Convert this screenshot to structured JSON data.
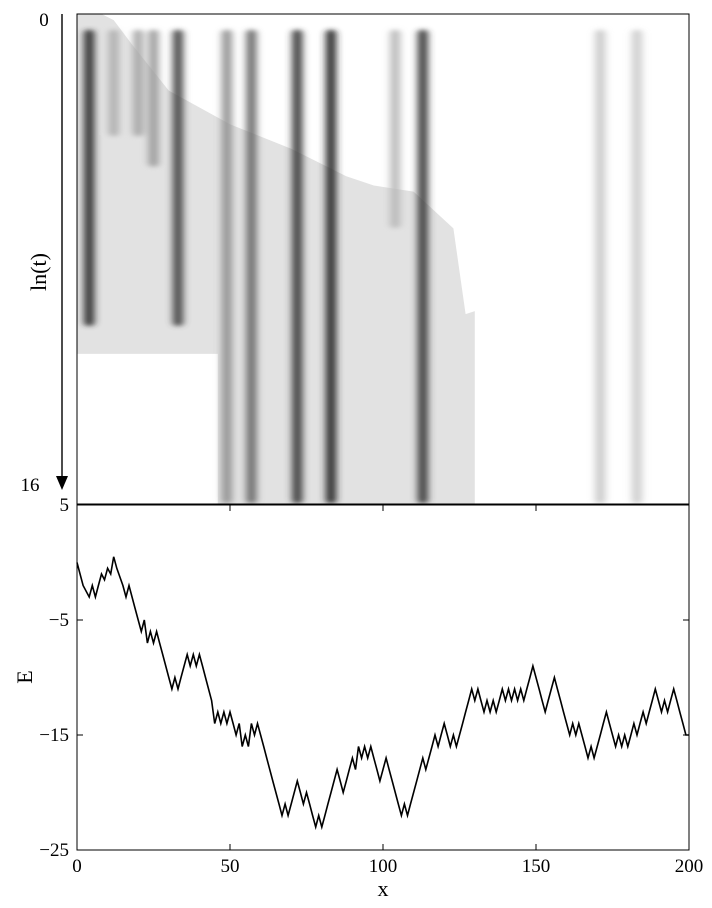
{
  "chart_data": [
    {
      "type": "heatmap",
      "title": "",
      "xlabel": "",
      "ylabel": "ln(t)",
      "xlim": [
        0,
        200
      ],
      "ylim": [
        0,
        16
      ],
      "y_tick_labels": [
        "0",
        "16"
      ],
      "y_axis_direction": "downward",
      "colormap": "grayscale (darker = higher density)",
      "grid": false,
      "columns": [
        {
          "x": 4,
          "end_ln_t": 10.2,
          "peak": 0.92
        },
        {
          "x": 12,
          "end_ln_t": 4.0,
          "peak": 0.25
        },
        {
          "x": 20,
          "end_ln_t": 4.0,
          "peak": 0.3
        },
        {
          "x": 25,
          "end_ln_t": 5.0,
          "peak": 0.35
        },
        {
          "x": 33,
          "end_ln_t": 10.2,
          "peak": 0.8
        },
        {
          "x": 49,
          "end_ln_t": 16.0,
          "peak": 0.4
        },
        {
          "x": 57,
          "end_ln_t": 16.0,
          "peak": 0.6
        },
        {
          "x": 72,
          "end_ln_t": 16.0,
          "peak": 0.85
        },
        {
          "x": 83,
          "end_ln_t": 16.0,
          "peak": 0.95
        },
        {
          "x": 104,
          "end_ln_t": 7.0,
          "peak": 0.2
        },
        {
          "x": 113,
          "end_ln_t": 16.0,
          "peak": 0.85
        },
        {
          "x": 171,
          "end_ln_t": 16.0,
          "peak": 0.12
        },
        {
          "x": 183,
          "end_ln_t": 16.0,
          "peak": 0.1
        }
      ],
      "envelope": [
        {
          "x": 0,
          "ln_t": 11.1
        },
        {
          "x": 33,
          "ln_t": 11.1
        },
        {
          "x": 46,
          "ln_t": 11.1
        },
        {
          "x": 46,
          "ln_t": 16.0
        },
        {
          "x": 130,
          "ln_t": 16.0
        },
        {
          "x": 130,
          "ln_t": 9.7
        },
        {
          "x": 127,
          "ln_t": 9.8
        },
        {
          "x": 123,
          "ln_t": 7.0
        },
        {
          "x": 110,
          "ln_t": 5.8
        },
        {
          "x": 97,
          "ln_t": 5.6
        },
        {
          "x": 88,
          "ln_t": 5.3
        },
        {
          "x": 70,
          "ln_t": 4.4
        },
        {
          "x": 50,
          "ln_t": 3.6
        },
        {
          "x": 30,
          "ln_t": 2.5
        },
        {
          "x": 18,
          "ln_t": 1.0
        },
        {
          "x": 12,
          "ln_t": 0.2
        },
        {
          "x": 8,
          "ln_t": 0.0
        },
        {
          "x": 0,
          "ln_t": 0.0
        }
      ]
    },
    {
      "type": "line",
      "title": "",
      "xlabel": "x",
      "ylabel": "E",
      "xlim": [
        0,
        200
      ],
      "ylim": [
        -25,
        5
      ],
      "x_ticks": [
        0,
        50,
        100,
        150,
        200
      ],
      "x_tick_labels": [
        "0",
        "50",
        "100",
        "150",
        "200"
      ],
      "y_ticks": [
        5,
        -5,
        -15,
        -25
      ],
      "y_tick_labels": [
        "5",
        "−5",
        "−15",
        "−25"
      ],
      "grid": false,
      "series": [
        {
          "points": [
            [
              0,
              0
            ],
            [
              2,
              -2
            ],
            [
              4,
              -3
            ],
            [
              5,
              -2
            ],
            [
              6,
              -3
            ],
            [
              7,
              -2
            ],
            [
              8,
              -1
            ],
            [
              9,
              -1.5
            ],
            [
              10,
              -0.5
            ],
            [
              11,
              -1
            ],
            [
              12,
              0.5
            ],
            [
              13,
              -0.5
            ],
            [
              15,
              -2
            ],
            [
              16,
              -3
            ],
            [
              17,
              -2
            ],
            [
              19,
              -4
            ],
            [
              20,
              -5
            ],
            [
              21,
              -6
            ],
            [
              22,
              -5
            ],
            [
              23,
              -7
            ],
            [
              24,
              -6
            ],
            [
              25,
              -7
            ],
            [
              26,
              -6
            ],
            [
              27,
              -7
            ],
            [
              28,
              -8
            ],
            [
              30,
              -10
            ],
            [
              31,
              -11
            ],
            [
              32,
              -10
            ],
            [
              33,
              -11
            ],
            [
              34,
              -10
            ],
            [
              35,
              -9
            ],
            [
              36,
              -8
            ],
            [
              37,
              -9
            ],
            [
              38,
              -8
            ],
            [
              39,
              -9
            ],
            [
              40,
              -8
            ],
            [
              41,
              -9
            ],
            [
              42,
              -10
            ],
            [
              44,
              -12
            ],
            [
              45,
              -14
            ],
            [
              46,
              -13
            ],
            [
              47,
              -14
            ],
            [
              48,
              -13
            ],
            [
              49,
              -14
            ],
            [
              50,
              -13
            ],
            [
              51,
              -14
            ],
            [
              52,
              -15
            ],
            [
              53,
              -14
            ],
            [
              54,
              -16
            ],
            [
              55,
              -15
            ],
            [
              56,
              -16
            ],
            [
              57,
              -14
            ],
            [
              58,
              -15
            ],
            [
              59,
              -14
            ],
            [
              60,
              -15
            ],
            [
              61,
              -16
            ],
            [
              62,
              -17
            ],
            [
              64,
              -19
            ],
            [
              66,
              -21
            ],
            [
              67,
              -22
            ],
            [
              68,
              -21
            ],
            [
              69,
              -22
            ],
            [
              70,
              -21
            ],
            [
              72,
              -19
            ],
            [
              73,
              -20
            ],
            [
              74,
              -21
            ],
            [
              75,
              -20
            ],
            [
              76,
              -21
            ],
            [
              77,
              -22
            ],
            [
              78,
              -23
            ],
            [
              79,
              -22
            ],
            [
              80,
              -23
            ],
            [
              81,
              -22
            ],
            [
              82,
              -21
            ],
            [
              83,
              -20
            ],
            [
              85,
              -18
            ],
            [
              86,
              -19
            ],
            [
              87,
              -20
            ],
            [
              88,
              -19
            ],
            [
              89,
              -18
            ],
            [
              90,
              -17
            ],
            [
              91,
              -18
            ],
            [
              92,
              -16
            ],
            [
              93,
              -17
            ],
            [
              94,
              -16
            ],
            [
              95,
              -17
            ],
            [
              96,
              -16
            ],
            [
              97,
              -17
            ],
            [
              98,
              -18
            ],
            [
              99,
              -19
            ],
            [
              100,
              -18
            ],
            [
              101,
              -17
            ],
            [
              102,
              -18
            ],
            [
              103,
              -19
            ],
            [
              105,
              -21
            ],
            [
              106,
              -22
            ],
            [
              107,
              -21
            ],
            [
              108,
              -22
            ],
            [
              109,
              -21
            ],
            [
              110,
              -20
            ],
            [
              111,
              -19
            ],
            [
              113,
              -17
            ],
            [
              114,
              -18
            ],
            [
              115,
              -17
            ],
            [
              116,
              -16
            ],
            [
              117,
              -15
            ],
            [
              118,
              -16
            ],
            [
              119,
              -15
            ],
            [
              120,
              -14
            ],
            [
              121,
              -15
            ],
            [
              122,
              -16
            ],
            [
              123,
              -15
            ],
            [
              124,
              -16
            ],
            [
              125,
              -15
            ],
            [
              126,
              -14
            ],
            [
              127,
              -13
            ],
            [
              128,
              -12
            ],
            [
              129,
              -11
            ],
            [
              130,
              -12
            ],
            [
              131,
              -11
            ],
            [
              132,
              -12
            ],
            [
              133,
              -13
            ],
            [
              134,
              -12
            ],
            [
              135,
              -13
            ],
            [
              136,
              -12
            ],
            [
              137,
              -13
            ],
            [
              138,
              -12
            ],
            [
              139,
              -11
            ],
            [
              140,
              -12
            ],
            [
              141,
              -11
            ],
            [
              142,
              -12
            ],
            [
              143,
              -11
            ],
            [
              144,
              -12
            ],
            [
              145,
              -11
            ],
            [
              146,
              -12
            ],
            [
              147,
              -11
            ],
            [
              148,
              -10
            ],
            [
              149,
              -9
            ],
            [
              150,
              -10
            ],
            [
              151,
              -11
            ],
            [
              152,
              -12
            ],
            [
              153,
              -13
            ],
            [
              154,
              -12
            ],
            [
              155,
              -11
            ],
            [
              156,
              -10
            ],
            [
              157,
              -11
            ],
            [
              158,
              -12
            ],
            [
              159,
              -13
            ],
            [
              160,
              -14
            ],
            [
              161,
              -15
            ],
            [
              162,
              -14
            ],
            [
              163,
              -15
            ],
            [
              164,
              -14
            ],
            [
              165,
              -15
            ],
            [
              166,
              -16
            ],
            [
              167,
              -17
            ],
            [
              168,
              -16
            ],
            [
              169,
              -17
            ],
            [
              170,
              -16
            ],
            [
              171,
              -15
            ],
            [
              172,
              -14
            ],
            [
              173,
              -13
            ],
            [
              174,
              -14
            ],
            [
              175,
              -15
            ],
            [
              176,
              -16
            ],
            [
              177,
              -15
            ],
            [
              178,
              -16
            ],
            [
              179,
              -15
            ],
            [
              180,
              -16
            ],
            [
              181,
              -15
            ],
            [
              182,
              -14
            ],
            [
              183,
              -15
            ],
            [
              184,
              -14
            ],
            [
              185,
              -13
            ],
            [
              186,
              -14
            ],
            [
              187,
              -13
            ],
            [
              188,
              -12
            ],
            [
              189,
              -11
            ],
            [
              190,
              -12
            ],
            [
              191,
              -13
            ],
            [
              192,
              -12
            ],
            [
              193,
              -13
            ],
            [
              194,
              -12
            ],
            [
              195,
              -11
            ],
            [
              196,
              -12
            ],
            [
              197,
              -13
            ],
            [
              198,
              -14
            ],
            [
              199,
              -15
            ],
            [
              200,
              -15
            ]
          ]
        }
      ]
    }
  ]
}
